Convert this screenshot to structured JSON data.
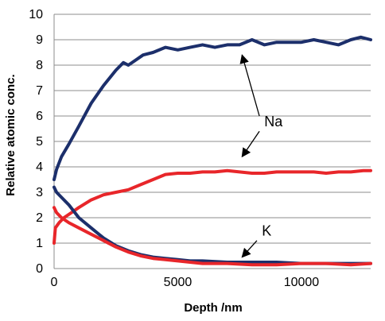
{
  "chart_data": {
    "type": "line",
    "xlabel": "Depth /nm",
    "ylabel": "Relative atomic conc.",
    "xlim": [
      0,
      12800
    ],
    "ylim": [
      0,
      10
    ],
    "x_ticks": [
      "0",
      "5000",
      "10000"
    ],
    "y_ticks": [
      "0",
      "1",
      "2",
      "3",
      "4",
      "5",
      "6",
      "7",
      "8",
      "9",
      "10"
    ],
    "grid": true,
    "colors": {
      "navy": "#1c2f6b",
      "red": "#e8262a",
      "grid": "#8c8c8c"
    },
    "series": [
      {
        "color": "#1c2f6b",
        "x": [
          0,
          100,
          300,
          600,
          1000,
          1500,
          2000,
          2500,
          2800,
          3000,
          3300,
          3600,
          4000,
          4500,
          5000,
          5500,
          6000,
          6500,
          7000,
          7500,
          8000,
          8500,
          9000,
          9500,
          10000,
          10500,
          11000,
          11500,
          12000,
          12400,
          12800
        ],
        "y": [
          3.5,
          3.9,
          4.4,
          4.9,
          5.6,
          6.5,
          7.2,
          7.8,
          8.1,
          8.0,
          8.2,
          8.4,
          8.5,
          8.7,
          8.6,
          8.7,
          8.8,
          8.7,
          8.8,
          8.8,
          9.0,
          8.8,
          8.9,
          8.9,
          8.9,
          9.0,
          8.9,
          8.8,
          9.0,
          9.1,
          9.0
        ]
      },
      {
        "color": "#e8262a",
        "x": [
          0,
          50,
          200,
          400,
          700,
          1000,
          1500,
          2000,
          2500,
          3000,
          3500,
          4000,
          4500,
          5000,
          5500,
          6000,
          6500,
          7000,
          7500,
          8000,
          8500,
          9000,
          9500,
          10000,
          10500,
          11000,
          11500,
          12000,
          12500,
          12800
        ],
        "y": [
          1.0,
          1.6,
          1.8,
          2.0,
          2.2,
          2.4,
          2.7,
          2.9,
          3.0,
          3.1,
          3.3,
          3.5,
          3.7,
          3.75,
          3.75,
          3.8,
          3.8,
          3.85,
          3.8,
          3.75,
          3.75,
          3.8,
          3.8,
          3.8,
          3.8,
          3.75,
          3.8,
          3.8,
          3.85,
          3.85
        ]
      },
      {
        "color": "#1c2f6b",
        "x": [
          0,
          100,
          300,
          600,
          1000,
          1500,
          2000,
          2500,
          3000,
          3500,
          4000,
          4500,
          5000,
          5500,
          6000,
          7000,
          8000,
          9000,
          10000,
          11000,
          12000,
          12800
        ],
        "y": [
          3.2,
          3.0,
          2.8,
          2.5,
          2.0,
          1.6,
          1.2,
          0.9,
          0.7,
          0.55,
          0.45,
          0.4,
          0.35,
          0.3,
          0.3,
          0.25,
          0.25,
          0.25,
          0.2,
          0.2,
          0.2,
          0.2
        ]
      },
      {
        "color": "#e8262a",
        "x": [
          0,
          100,
          300,
          600,
          1000,
          1500,
          2000,
          2500,
          3000,
          3500,
          4000,
          4500,
          5000,
          5500,
          6000,
          7000,
          8000,
          9000,
          10000,
          11000,
          12000,
          12800
        ],
        "y": [
          2.4,
          2.2,
          2.0,
          1.8,
          1.6,
          1.35,
          1.1,
          0.85,
          0.65,
          0.5,
          0.4,
          0.35,
          0.3,
          0.25,
          0.2,
          0.2,
          0.15,
          0.15,
          0.2,
          0.2,
          0.15,
          0.2
        ]
      }
    ],
    "annotations": [
      {
        "label": "Na",
        "text_x": 8500,
        "text_y": 5.6,
        "arrows": [
          {
            "from_x": 8300,
            "from_y": 6.0,
            "to_x": 7600,
            "to_y": 8.4
          },
          {
            "from_x": 8300,
            "from_y": 5.4,
            "to_x": 7600,
            "to_y": 4.4
          }
        ]
      },
      {
        "label": "K",
        "text_x": 8400,
        "text_y": 1.3,
        "arrows": [
          {
            "from_x": 8200,
            "from_y": 1.1,
            "to_x": 7600,
            "to_y": 0.45
          }
        ]
      }
    ]
  }
}
